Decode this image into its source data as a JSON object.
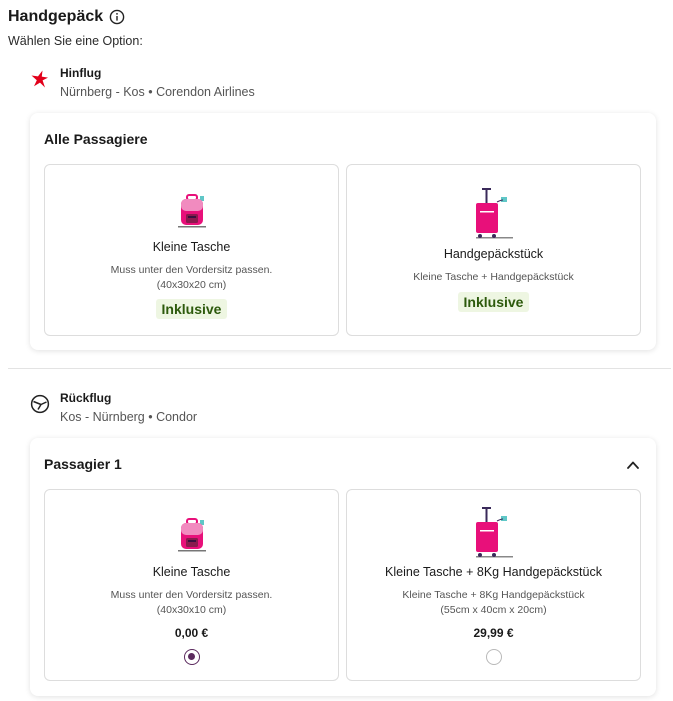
{
  "header": {
    "title": "Handgepäck",
    "subtitle": "Wählen Sie eine Option:"
  },
  "outbound": {
    "label": "Hinflug",
    "route": "Nürnberg - Kos • Corendon Airlines",
    "airline_logo": "star-icon",
    "panel_title": "Alle Passagiere",
    "options": [
      {
        "name": "Kleine Tasche",
        "desc_line1": "Muss unter den Vordersitz passen.",
        "desc_line2": "(40x30x20 cm)",
        "badge": "Inklusive",
        "icon": "backpack-icon"
      },
      {
        "name": "Handgepäckstück",
        "desc_line1": "Kleine Tasche + Handgepäckstück",
        "badge": "Inklusive",
        "icon": "trolley-icon"
      }
    ]
  },
  "return": {
    "label": "Rückflug",
    "route": "Kos - Nürnberg • Condor",
    "airline_logo": "bird-icon",
    "panel_title": "Passagier 1",
    "options": [
      {
        "name": "Kleine Tasche",
        "desc_line1": "Muss unter den Vordersitz passen.",
        "desc_line2": "(40x30x10 cm)",
        "price": "0,00 €",
        "selected": true,
        "icon": "backpack-icon"
      },
      {
        "name": "Kleine Tasche + 8Kg Handgepäckstück",
        "desc_line1": "Kleine Tasche + 8Kg Handgepäckstück",
        "desc_line2": "(55cm x 40cm x 20cm)",
        "price": "29,99 €",
        "selected": false,
        "icon": "trolley-icon"
      }
    ]
  },
  "colors": {
    "accent_pink": "#e8107a",
    "radio_selected": "#5b2a5e",
    "badge_bg": "#eef6e2",
    "badge_text": "#2d5a0c",
    "logo_red": "#e2001a"
  }
}
